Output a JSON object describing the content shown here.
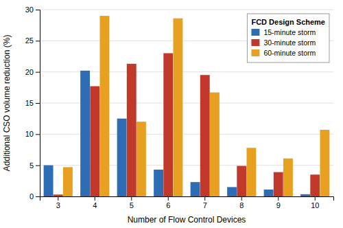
{
  "chart_data": {
    "type": "bar",
    "categories": [
      3,
      4,
      5,
      6,
      7,
      8,
      9,
      10
    ],
    "series": [
      {
        "name": "15-minute storm",
        "color": "#2e6db4",
        "values": [
          5.0,
          20.2,
          12.5,
          4.3,
          2.3,
          1.5,
          1.1,
          0.35
        ]
      },
      {
        "name": "30-minute storm",
        "color": "#c0392b",
        "values": [
          0.3,
          17.7,
          21.3,
          23.0,
          19.5,
          4.9,
          3.9,
          3.5
        ]
      },
      {
        "name": "60-minute storm",
        "color": "#e8a020",
        "values": [
          4.7,
          29.0,
          12.0,
          28.6,
          16.7,
          7.8,
          6.1,
          10.7
        ]
      }
    ],
    "legend_title": "FCD Design Scheme",
    "legend": "upper right",
    "xlabel": "Number of Flow Control Devices",
    "ylabel": "Additional CSO volume reduction (%)",
    "ylim": [
      0,
      30
    ],
    "yticks": [
      0,
      5,
      10,
      15,
      20,
      25,
      30
    ],
    "grid": true
  }
}
